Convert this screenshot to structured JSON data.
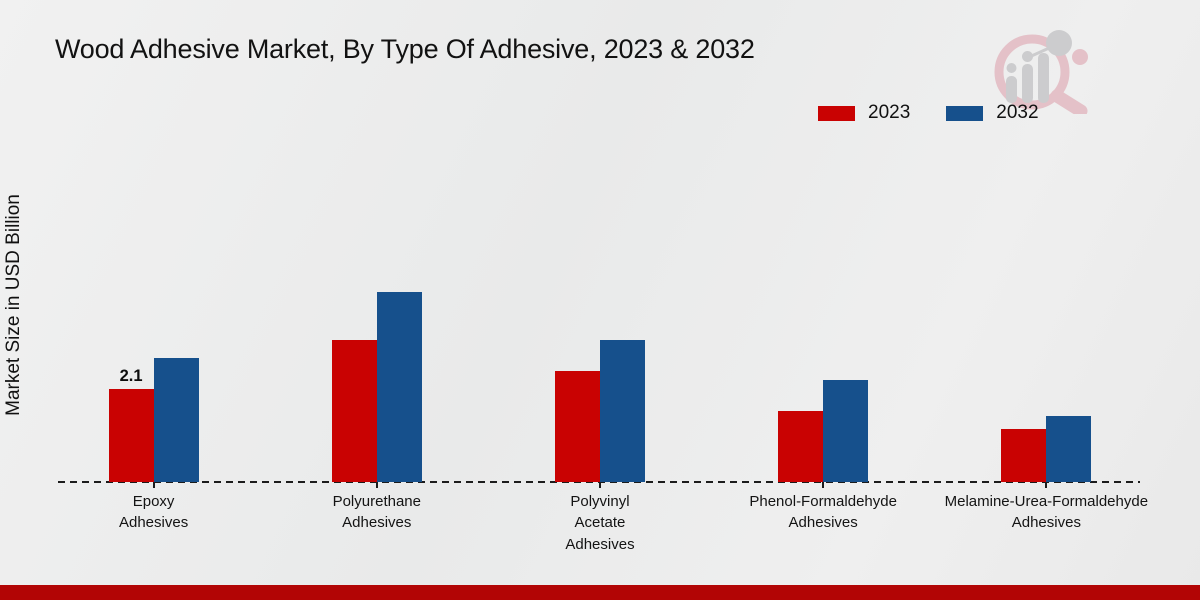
{
  "header": {
    "title": "Wood Adhesive Market, By Type Of Adhesive, 2023 & 2032"
  },
  "legend": {
    "items": [
      {
        "label": "2023",
        "color": "#c90202"
      },
      {
        "label": "2032",
        "color": "#16508c"
      }
    ]
  },
  "chart_data": {
    "type": "bar",
    "title": "Wood Adhesive Market, By Type Of Adhesive, 2023 & 2032",
    "ylabel": "Market Size in USD Billion",
    "xlabel": "",
    "categories": [
      "Epoxy Adhesives",
      "Polyurethane Adhesives",
      "Polyvinyl Acetate Adhesives",
      "Phenol-Formaldehyde Adhesives",
      "Melamine-Urea-Formaldehyde Adhesives"
    ],
    "label_lines": [
      [
        "Epoxy",
        "Adhesives"
      ],
      [
        "Polyurethane",
        "Adhesives"
      ],
      [
        "Polyvinyl",
        "Acetate",
        "Adhesives"
      ],
      [
        "Phenol-Formaldehyde",
        "Adhesives"
      ],
      [
        "Melamine-Urea-Formaldehyde",
        "Adhesives"
      ]
    ],
    "series": [
      {
        "name": "2023",
        "color": "#c90202",
        "values": [
          2.1,
          3.2,
          2.5,
          1.6,
          1.2
        ]
      },
      {
        "name": "2032",
        "color": "#16508c",
        "values": [
          2.8,
          4.3,
          3.2,
          2.3,
          1.5
        ]
      }
    ],
    "annotations": [
      {
        "series_index": 0,
        "category_index": 0,
        "text": "2.1"
      }
    ],
    "ylim": [
      0,
      5
    ],
    "legend_position": "top-right",
    "grid": false,
    "baseline_style": "dashed"
  },
  "watermark": {
    "icon": "market-research-chart-magnifier-logo"
  },
  "footer": {
    "color": "#b20505"
  }
}
